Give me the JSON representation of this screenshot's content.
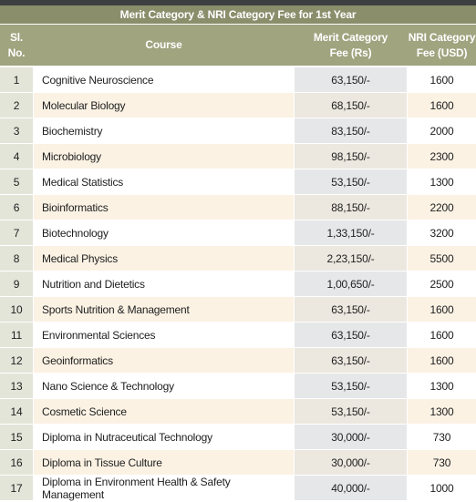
{
  "title": "Merit Category & NRI Category Fee for 1st Year",
  "headers": {
    "sl_line1": "Sl.",
    "sl_line2": "No.",
    "course": "Course",
    "merit_line1": "Merit Category",
    "merit_line2": "Fee (Rs)",
    "nri_line1": "NRI Category",
    "nri_line2": "Fee (USD)"
  },
  "rows": [
    {
      "no": "1",
      "course": "Cognitive Neuroscience",
      "merit": "63,150/-",
      "nri": "1600"
    },
    {
      "no": "2",
      "course": "Molecular Biology",
      "merit": "68,150/-",
      "nri": "1600"
    },
    {
      "no": "3",
      "course": "Biochemistry",
      "merit": "83,150/-",
      "nri": "2000"
    },
    {
      "no": "4",
      "course": "Microbiology",
      "merit": "98,150/-",
      "nri": "2300"
    },
    {
      "no": "5",
      "course": "Medical Statistics",
      "merit": "53,150/-",
      "nri": "1300"
    },
    {
      "no": "6",
      "course": "Bioinformatics",
      "merit": "88,150/-",
      "nri": "2200"
    },
    {
      "no": "7",
      "course": "Biotechnology",
      "merit": "1,33,150/-",
      "nri": "3200"
    },
    {
      "no": "8",
      "course": "Medical Physics",
      "merit": "2,23,150/-",
      "nri": "5500"
    },
    {
      "no": "9",
      "course": "Nutrition and Dietetics",
      "merit": "1,00,650/-",
      "nri": "2500"
    },
    {
      "no": "10",
      "course": "Sports Nutrition & Management",
      "merit": "63,150/-",
      "nri": "1600"
    },
    {
      "no": "11",
      "course": "Environmental Sciences",
      "merit": "63,150/-",
      "nri": "1600"
    },
    {
      "no": "12",
      "course": "Geoinformatics",
      "merit": "63,150/-",
      "nri": "1600"
    },
    {
      "no": "13",
      "course": "Nano Science & Technology",
      "merit": "53,150/-",
      "nri": "1300"
    },
    {
      "no": "14",
      "course": "Cosmetic Science",
      "merit": "53,150/-",
      "nri": "1300"
    },
    {
      "no": "15",
      "course": "Diploma in Nutraceutical Technology",
      "merit": "30,000/-",
      "nri": "730"
    },
    {
      "no": "16",
      "course": "Diploma in Tissue Culture",
      "merit": "30,000/-",
      "nri": "730"
    },
    {
      "no": "17",
      "course": "Diploma in Environment Health & Safety Management",
      "merit": "40,000/-",
      "nri": "1000"
    }
  ],
  "colors": {
    "title_bar": "#8a8e6b",
    "header": "#a0a47f",
    "top_strip": "#3e3f41",
    "row_alt": "#fbf2e4"
  }
}
